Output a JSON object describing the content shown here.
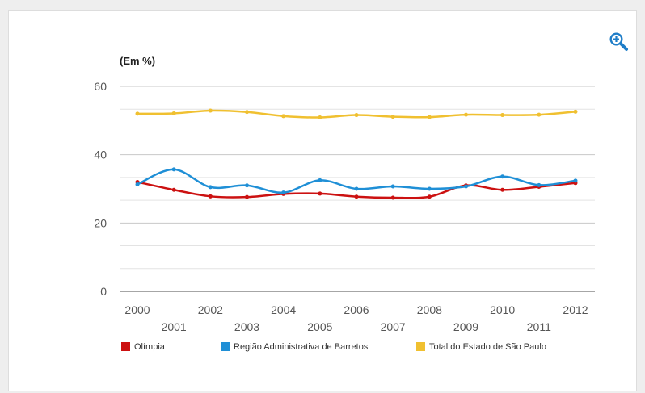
{
  "chart_data": {
    "type": "line",
    "unit_label": "(Em %)",
    "x": [
      "2000",
      "2001",
      "2002",
      "2003",
      "2004",
      "2005",
      "2006",
      "2007",
      "2008",
      "2009",
      "2010",
      "2011",
      "2012"
    ],
    "ylim": [
      0,
      60
    ],
    "yticks": [
      0,
      20,
      40,
      60
    ],
    "grid": true,
    "legend_position": "bottom",
    "series": [
      {
        "name": "Olímpia",
        "color": "#cc1111",
        "values": [
          32.0,
          29.7,
          27.8,
          27.6,
          28.5,
          28.6,
          27.7,
          27.4,
          27.7,
          31.0,
          29.7,
          30.6,
          31.7
        ]
      },
      {
        "name": "Região Administrativa de Barretos",
        "color": "#1f8fd6",
        "values": [
          31.3,
          35.7,
          30.5,
          31.0,
          28.9,
          32.5,
          30.0,
          30.7,
          30.0,
          30.7,
          33.6,
          31.1,
          32.4
        ]
      },
      {
        "name": "Total do Estado de São Paulo",
        "color": "#f0c030",
        "values": [
          52.0,
          52.1,
          52.9,
          52.5,
          51.3,
          50.9,
          51.6,
          51.1,
          51.0,
          51.7,
          51.6,
          51.7,
          52.6
        ]
      }
    ]
  },
  "toolbar": {
    "zoom_icon": "zoom-in-icon",
    "zoom_color": "#1e7dc8"
  }
}
